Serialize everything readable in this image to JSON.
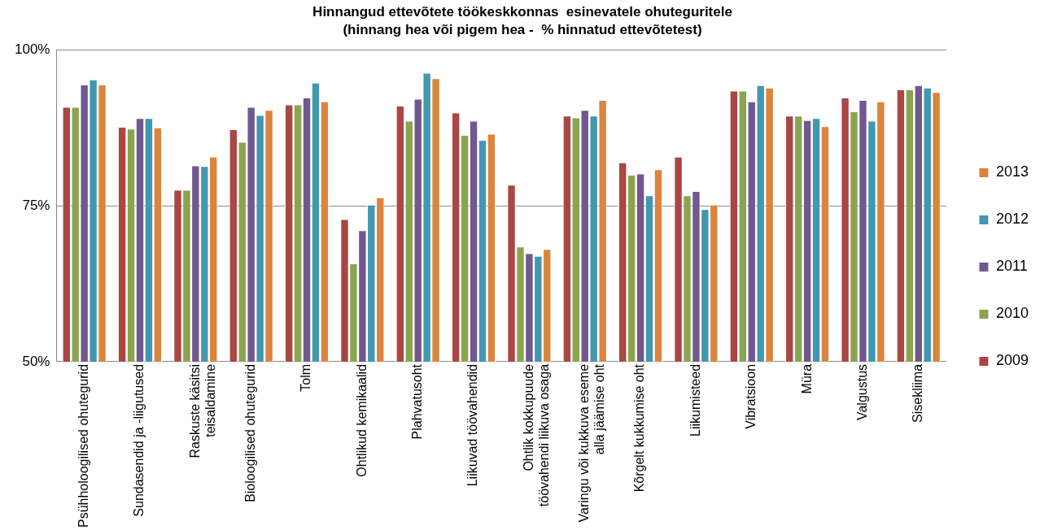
{
  "chart_data": {
    "type": "bar",
    "title": "Hinnangud ettevõtete töökeskkonnas  esinevatele ohuteguritele",
    "subtitle": "(hinnang hea või pigem hea -  % hinnatud ettevõtetest)",
    "categories": [
      "Psühholoogilised ohutegurid",
      "Sundasendid ja -liigutused",
      "Raskuste käsitsi\nteisaldamine",
      "Bioloogilised ohutegurid",
      "Tolm",
      "Ohtlikud kemikaalid",
      "Plahvatusoht",
      "Liikuvad töövahendid",
      "Ohtlik kokkupuude\ntöövahendi liikuva osaga",
      "Varingu või kukkuva eseme\nalla jäämise oht",
      "Kõrgelt kukkumise oht",
      "Liikumisteed",
      "Vibratsioon",
      "Müra",
      "Valgustus",
      "Sisekliima"
    ],
    "series": [
      {
        "name": "2009",
        "color": "#aa4643",
        "values": [
          90.9,
          87.7,
          77.6,
          87.3,
          91.3,
          72.9,
          91.1,
          90.0,
          78.4,
          89.5,
          82.0,
          82.9,
          93.5,
          89.5,
          92.4,
          93.7
        ]
      },
      {
        "name": "2010",
        "color": "#89a54e",
        "values": [
          90.9,
          87.4,
          77.6,
          85.3,
          91.3,
          65.8,
          88.7,
          86.4,
          68.5,
          89.2,
          80.0,
          76.7,
          93.5,
          89.5,
          90.2,
          93.7
        ]
      },
      {
        "name": "2011",
        "color": "#71588f",
        "values": [
          94.5,
          89.1,
          81.5,
          90.9,
          92.4,
          71.1,
          92.2,
          88.7,
          67.4,
          90.4,
          80.2,
          77.4,
          91.8,
          88.8,
          92.0,
          94.4
        ]
      },
      {
        "name": "2012",
        "color": "#4198af",
        "values": [
          95.3,
          89.1,
          81.4,
          89.6,
          94.8,
          75.2,
          96.4,
          85.6,
          67.0,
          89.5,
          76.7,
          74.5,
          94.4,
          89.1,
          88.7,
          94.0
        ]
      },
      {
        "name": "2013",
        "color": "#db843d",
        "values": [
          94.5,
          87.6,
          82.9,
          90.4,
          91.8,
          76.4,
          95.5,
          86.6,
          68.1,
          92.0,
          80.9,
          75.2,
          94.0,
          87.8,
          91.8,
          93.3
        ]
      }
    ],
    "ylim": [
      50,
      100
    ],
    "yticks": [
      {
        "value": 50,
        "label": "50%"
      },
      {
        "value": 75,
        "label": "75%"
      },
      {
        "value": 100,
        "label": "100%"
      }
    ],
    "grid": "y",
    "legend": "right"
  }
}
